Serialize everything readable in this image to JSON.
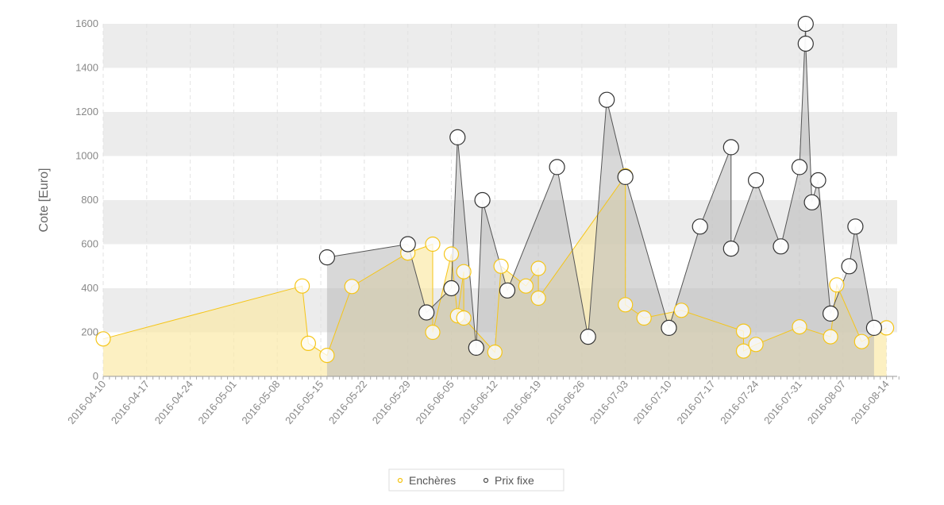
{
  "chart_data": {
    "type": "area",
    "title": "",
    "xlabel": "",
    "ylabel": "Cote [Euro]",
    "ylim": [
      0,
      1600
    ],
    "yticks": [
      0,
      200,
      400,
      600,
      800,
      1000,
      1200,
      1400,
      1600
    ],
    "xlim": [
      "2016-04-10",
      "2016-08-16"
    ],
    "xticks": [
      "2016-04-10",
      "2016-04-17",
      "2016-04-24",
      "2016-05-01",
      "2016-05-08",
      "2016-05-15",
      "2016-05-22",
      "2016-05-29",
      "2016-06-05",
      "2016-06-12",
      "2016-06-19",
      "2016-06-26",
      "2016-07-03",
      "2016-07-10",
      "2016-07-17",
      "2016-07-24",
      "2016-07-31",
      "2016-08-07",
      "2016-08-14"
    ],
    "grid": "alternating horizontal bands, dashed vertical lines",
    "legend_position": "bottom-center",
    "series": [
      {
        "name": "Enchères",
        "color": "#f5c518",
        "fill": "#fbe9a8",
        "points": [
          [
            "2016-04-10",
            170
          ],
          [
            "2016-05-12",
            410
          ],
          [
            "2016-05-13",
            150
          ],
          [
            "2016-05-16",
            95
          ],
          [
            "2016-05-20",
            408
          ],
          [
            "2016-05-29",
            560
          ],
          [
            "2016-06-02",
            600
          ],
          [
            "2016-06-02",
            200
          ],
          [
            "2016-06-05",
            555
          ],
          [
            "2016-06-06",
            275
          ],
          [
            "2016-06-07",
            475
          ],
          [
            "2016-06-07",
            265
          ],
          [
            "2016-06-12",
            110
          ],
          [
            "2016-06-13",
            500
          ],
          [
            "2016-06-17",
            410
          ],
          [
            "2016-06-19",
            490
          ],
          [
            "2016-06-19",
            355
          ],
          [
            "2016-07-03",
            910
          ],
          [
            "2016-07-03",
            325
          ],
          [
            "2016-07-06",
            265
          ],
          [
            "2016-07-12",
            300
          ],
          [
            "2016-07-22",
            205
          ],
          [
            "2016-07-22",
            115
          ],
          [
            "2016-07-24",
            145
          ],
          [
            "2016-07-31",
            225
          ],
          [
            "2016-08-05",
            180
          ],
          [
            "2016-08-06",
            415
          ],
          [
            "2016-08-10",
            158
          ],
          [
            "2016-08-14",
            220
          ]
        ]
      },
      {
        "name": "Prix fixe",
        "color": "#555555",
        "fill": "#b8b8b8",
        "points": [
          [
            "2016-05-16",
            540
          ],
          [
            "2016-05-29",
            600
          ],
          [
            "2016-06-01",
            290
          ],
          [
            "2016-06-05",
            400
          ],
          [
            "2016-06-06",
            1085
          ],
          [
            "2016-06-09",
            130
          ],
          [
            "2016-06-10",
            800
          ],
          [
            "2016-06-14",
            390
          ],
          [
            "2016-06-22",
            950
          ],
          [
            "2016-06-27",
            180
          ],
          [
            "2016-06-30",
            1255
          ],
          [
            "2016-07-03",
            905
          ],
          [
            "2016-07-10",
            220
          ],
          [
            "2016-07-15",
            680
          ],
          [
            "2016-07-20",
            1040
          ],
          [
            "2016-07-20",
            580
          ],
          [
            "2016-07-24",
            890
          ],
          [
            "2016-07-28",
            590
          ],
          [
            "2016-07-31",
            950
          ],
          [
            "2016-08-01",
            1600
          ],
          [
            "2016-08-01",
            1510
          ],
          [
            "2016-08-02",
            790
          ],
          [
            "2016-08-03",
            890
          ],
          [
            "2016-08-05",
            285
          ],
          [
            "2016-08-08",
            500
          ],
          [
            "2016-08-09",
            680
          ],
          [
            "2016-08-12",
            220
          ]
        ]
      }
    ]
  }
}
